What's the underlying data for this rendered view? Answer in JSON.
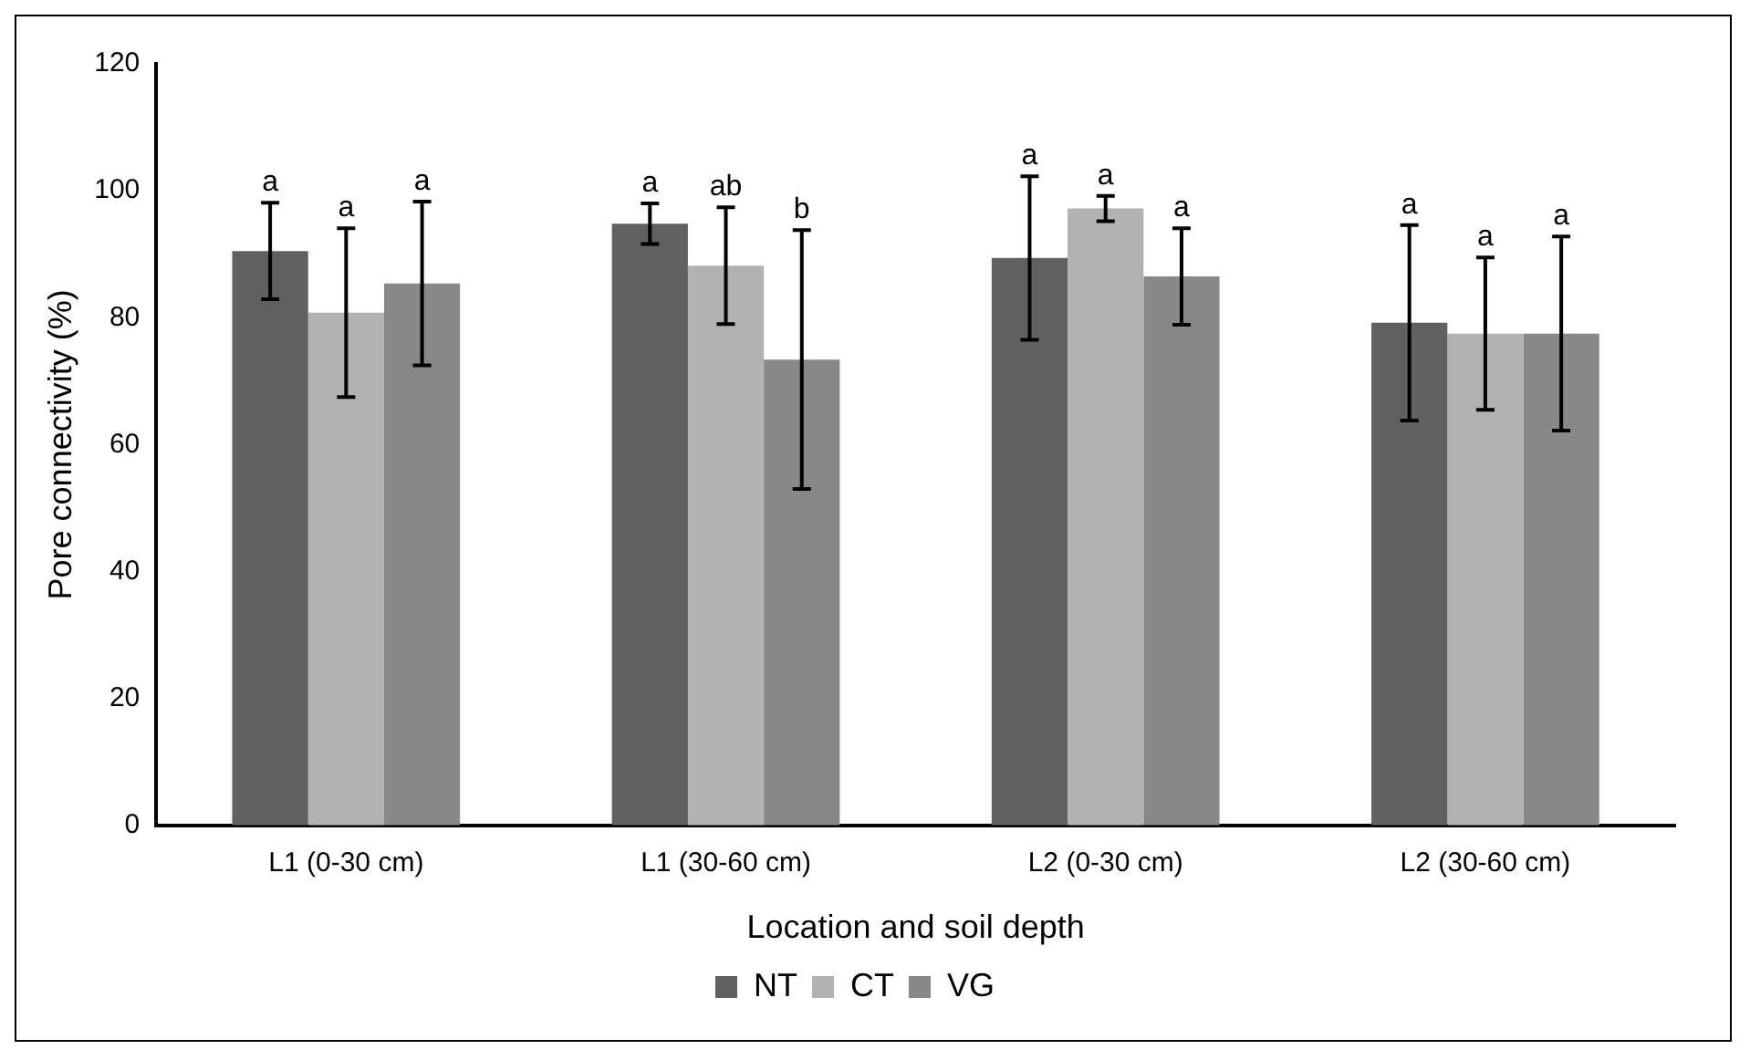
{
  "chart_data": {
    "type": "bar",
    "xlabel": "Location and soil depth",
    "ylabel": "Pore connectivity (%)",
    "categories": [
      "L1 (0-30 cm)",
      "L1 (30-60 cm)",
      "L2 (0-30 cm)",
      "L2 (30-60 cm)"
    ],
    "series": [
      {
        "name": "NT",
        "color": "#606060",
        "values": [
          90.5,
          94.8,
          89.4,
          79.2
        ],
        "errors": [
          7.6,
          3.2,
          12.9,
          15.4
        ]
      },
      {
        "name": "CT",
        "color": "#b2b2b2",
        "values": [
          80.8,
          88.2,
          97.2,
          77.5
        ],
        "errors": [
          13.3,
          9.2,
          2,
          12
        ]
      },
      {
        "name": "VG",
        "color": "#888888",
        "values": [
          85.4,
          73.4,
          86.5,
          77.5
        ],
        "errors": [
          12.9,
          20.4,
          7.6,
          15.3
        ]
      }
    ],
    "ylim": [
      0,
      120
    ],
    "yticks": [
      0,
      20,
      40,
      60,
      80,
      100,
      120
    ],
    "grid": false,
    "legend": "bottom",
    "annotations": [
      "a",
      "a",
      "a",
      "a",
      "ab",
      "b",
      "a",
      "a",
      "a",
      "a",
      "a",
      "a"
    ]
  }
}
